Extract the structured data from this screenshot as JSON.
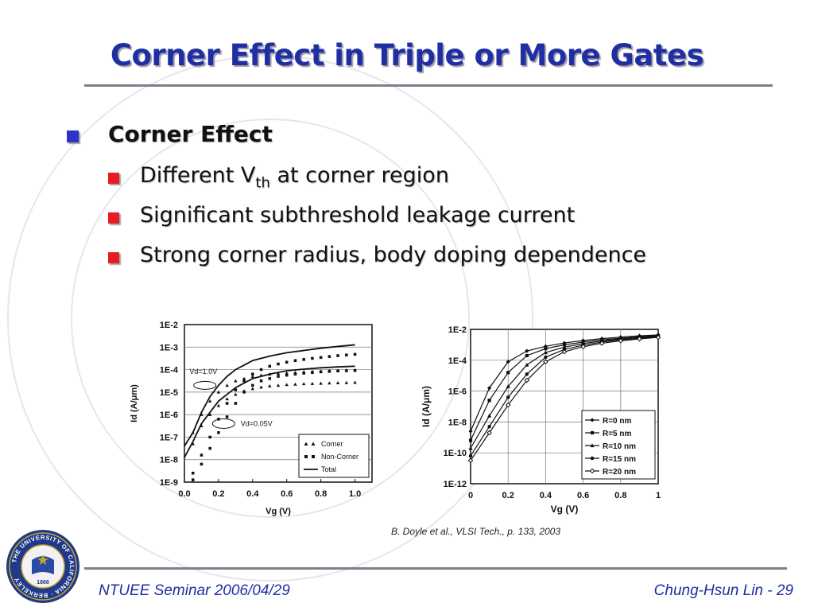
{
  "title": "Corner Effect in Triple or More Gates",
  "bullets": {
    "main": "Corner Effect",
    "sub": [
      {
        "pre": "Different V",
        "sub": "th",
        "post": " at corner region"
      },
      {
        "pre": "Significant subthreshold leakage current",
        "sub": "",
        "post": ""
      },
      {
        "pre": "Strong corner radius, body doping dependence",
        "sub": "",
        "post": ""
      }
    ]
  },
  "citation": "B. Doyle et al., VLSI Tech., p. 133, 2003",
  "footer": {
    "left": "NTUEE Seminar 2006/04/29",
    "right": "Chung-Hsun Lin - 29"
  },
  "seal": {
    "ring_text": "THE UNIVERSITY OF CALIFORNIA · BERKELEY",
    "year": "1868",
    "colors": {
      "blue": "#1f3a8a",
      "gold": "#c9a227"
    }
  },
  "colors": {
    "title": "#1f2ea3",
    "bullet_main": "#2b34c8",
    "bullet_sub": "#e81c24"
  },
  "chart_data": [
    {
      "type": "scatter",
      "title": "",
      "xlabel": "Vg (V)",
      "ylabel": "Id (A/μm)",
      "x_ticks": [
        "0.0",
        "0.2",
        "0.4",
        "0.6",
        "0.8",
        "1.0"
      ],
      "y_ticks": [
        "1E-2",
        "1E-3",
        "1E-4",
        "1E-5",
        "1E-6",
        "1E-7",
        "1E-8",
        "1E-9"
      ],
      "xlim": [
        0,
        1.1
      ],
      "ylim_log10": [
        -9,
        -2
      ],
      "y_scale": "log",
      "grid": true,
      "legend": {
        "position": "bottom-right",
        "entries": [
          "Corner",
          "Non-Corner",
          "Total"
        ]
      },
      "annotations": [
        {
          "text": "Vd=1.0V",
          "x": 0.03,
          "y_log10": -4.2
        },
        {
          "text": "Vd=0.05V",
          "x": 0.33,
          "y_log10": -6.5
        }
      ],
      "series": [
        {
          "name": "Corner",
          "condition": "Vd=1.0V",
          "marker": "triangle",
          "x": [
            0.05,
            0.1,
            0.15,
            0.2,
            0.25,
            0.3,
            0.35,
            0.4,
            0.45,
            0.5,
            0.55,
            0.6,
            0.65,
            0.7,
            0.75,
            0.8,
            0.85,
            0.9,
            0.95,
            1.0
          ],
          "y_log10": [
            -6.8,
            -6.0,
            -5.4,
            -5.0,
            -4.7,
            -4.5,
            -4.4,
            -4.3,
            -4.25,
            -4.2,
            -4.17,
            -4.15,
            -4.13,
            -4.1,
            -4.08,
            -4.07,
            -4.05,
            -4.04,
            -4.03,
            -4.02
          ]
        },
        {
          "name": "Non-Corner",
          "condition": "Vd=1.0V",
          "marker": "square",
          "x": [
            0.05,
            0.1,
            0.15,
            0.2,
            0.25,
            0.3,
            0.35,
            0.4,
            0.45,
            0.5,
            0.55,
            0.6,
            0.65,
            0.7,
            0.75,
            0.8,
            0.85,
            0.9,
            0.95,
            1.0
          ],
          "y_log10": [
            -8.6,
            -7.8,
            -7.0,
            -6.2,
            -5.5,
            -4.9,
            -4.5,
            -4.2,
            -4.0,
            -3.85,
            -3.75,
            -3.67,
            -3.6,
            -3.55,
            -3.5,
            -3.46,
            -3.42,
            -3.38,
            -3.35,
            -3.32
          ]
        },
        {
          "name": "Total",
          "condition": "Vd=1.0V",
          "marker": "line",
          "x": [
            0.0,
            0.05,
            0.1,
            0.15,
            0.2,
            0.25,
            0.3,
            0.35,
            0.4,
            0.5,
            0.6,
            0.7,
            0.8,
            0.9,
            1.0
          ],
          "y_log10": [
            -7.4,
            -6.8,
            -5.9,
            -5.2,
            -4.7,
            -4.3,
            -4.0,
            -3.8,
            -3.6,
            -3.4,
            -3.25,
            -3.15,
            -3.05,
            -2.97,
            -2.9
          ]
        },
        {
          "name": "Corner",
          "condition": "Vd=0.05V",
          "marker": "triangle",
          "x": [
            0.05,
            0.1,
            0.15,
            0.2,
            0.25,
            0.3,
            0.35,
            0.4,
            0.45,
            0.5,
            0.55,
            0.6,
            0.65,
            0.7,
            0.75,
            0.8,
            0.85,
            0.9,
            0.95,
            1.0
          ],
          "y_log10": [
            -7.3,
            -6.5,
            -6.0,
            -5.6,
            -5.3,
            -5.1,
            -4.95,
            -4.85,
            -4.78,
            -4.73,
            -4.7,
            -4.67,
            -4.65,
            -4.63,
            -4.62,
            -4.61,
            -4.6,
            -4.59,
            -4.58,
            -4.57
          ]
        },
        {
          "name": "Non-Corner",
          "condition": "Vd=0.05V",
          "marker": "square",
          "x": [
            0.05,
            0.1,
            0.15,
            0.2,
            0.25,
            0.3,
            0.35,
            0.4,
            0.45,
            0.5,
            0.55,
            0.6,
            0.65,
            0.7,
            0.75,
            0.8,
            0.85,
            0.9,
            0.95,
            1.0
          ],
          "y_log10": [
            -8.9,
            -8.2,
            -7.5,
            -6.8,
            -6.1,
            -5.5,
            -5.0,
            -4.7,
            -4.5,
            -4.4,
            -4.3,
            -4.25,
            -4.2,
            -4.16,
            -4.13,
            -4.1,
            -4.08,
            -4.06,
            -4.05,
            -4.04
          ]
        },
        {
          "name": "Total",
          "condition": "Vd=0.05V",
          "marker": "line",
          "x": [
            0.0,
            0.05,
            0.1,
            0.15,
            0.2,
            0.3,
            0.4,
            0.5,
            0.6,
            0.7,
            0.8,
            0.9,
            1.0
          ],
          "y_log10": [
            -7.9,
            -7.2,
            -6.4,
            -5.9,
            -5.4,
            -4.8,
            -4.4,
            -4.2,
            -4.05,
            -3.98,
            -3.92,
            -3.88,
            -3.85
          ]
        }
      ]
    },
    {
      "type": "line",
      "title": "",
      "xlabel": "Vg (V)",
      "ylabel": "Id (A/μm)",
      "x_ticks": [
        "0",
        "0.2",
        "0.4",
        "0.6",
        "0.8",
        "1"
      ],
      "y_ticks": [
        "1E-2",
        "1E-4",
        "1E-6",
        "1E-8",
        "1E-10",
        "1E-12"
      ],
      "xlim": [
        0,
        1
      ],
      "ylim_log10": [
        -12,
        -2
      ],
      "y_scale": "log",
      "grid": true,
      "legend": {
        "position": "bottom-right",
        "entries": [
          "R=0 nm",
          "R=5 nm",
          "R=10 nm",
          "R=15 nm",
          "R=20 nm"
        ]
      },
      "x": [
        0,
        0.1,
        0.2,
        0.3,
        0.4,
        0.5,
        0.6,
        0.7,
        0.8,
        0.9,
        1.0
      ],
      "series": [
        {
          "name": "R=0 nm",
          "marker": "diamond",
          "y_log10": [
            -8.6,
            -5.8,
            -4.1,
            -3.4,
            -3.1,
            -2.88,
            -2.72,
            -2.6,
            -2.5,
            -2.42,
            -2.36
          ]
        },
        {
          "name": "R=5 nm",
          "marker": "square",
          "y_log10": [
            -9.2,
            -6.6,
            -4.8,
            -3.7,
            -3.25,
            -3.0,
            -2.82,
            -2.68,
            -2.57,
            -2.48,
            -2.4
          ]
        },
        {
          "name": "R=10 nm",
          "marker": "triangle",
          "y_log10": [
            -9.7,
            -7.6,
            -5.7,
            -4.3,
            -3.5,
            -3.15,
            -2.92,
            -2.75,
            -2.62,
            -2.52,
            -2.44
          ]
        },
        {
          "name": "R=15 nm",
          "marker": "circle",
          "y_log10": [
            -10.2,
            -8.3,
            -6.4,
            -4.9,
            -3.8,
            -3.3,
            -3.02,
            -2.82,
            -2.68,
            -2.57,
            -2.48
          ]
        },
        {
          "name": "R=20 nm",
          "marker": "open-diamond",
          "y_log10": [
            -10.5,
            -8.7,
            -6.9,
            -5.3,
            -4.1,
            -3.45,
            -3.12,
            -2.9,
            -2.74,
            -2.62,
            -2.52
          ]
        }
      ]
    }
  ]
}
